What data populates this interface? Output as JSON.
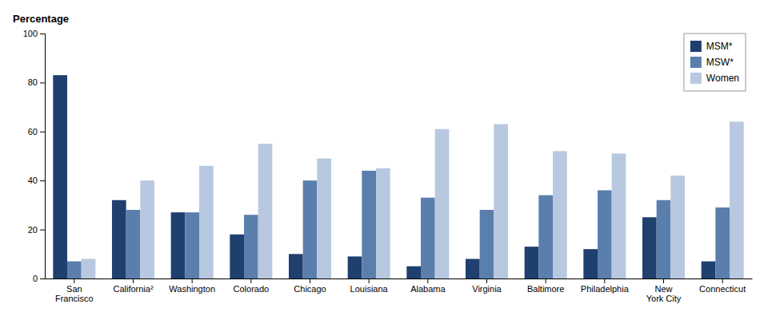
{
  "chart_data": {
    "type": "bar",
    "ylabel": "Percentage",
    "categories": [
      "San\nFrancisco",
      "California²",
      "Washington",
      "Colorado",
      "Chicago",
      "Louisiana",
      "Alabama",
      "Virginia",
      "Baltimore",
      "Philadelphia",
      "New\nYork City",
      "Connecticut"
    ],
    "series": [
      {
        "name": "MSM*",
        "color": "#1f3f6e",
        "values": [
          83,
          32,
          27,
          18,
          10,
          9,
          5,
          8,
          13,
          12,
          25,
          7
        ]
      },
      {
        "name": "MSW*",
        "color": "#5b7fad",
        "values": [
          7,
          28,
          27,
          26,
          40,
          44,
          33,
          28,
          34,
          36,
          32,
          29
        ]
      },
      {
        "name": "Women",
        "color": "#b8c8e0",
        "values": [
          8,
          40,
          46,
          55,
          49,
          45,
          61,
          63,
          52,
          51,
          42,
          64
        ]
      }
    ],
    "ylim": [
      0,
      100
    ],
    "yticks": [
      0,
      20,
      40,
      60,
      80,
      100
    ],
    "grid": false,
    "legend": "top-right"
  }
}
